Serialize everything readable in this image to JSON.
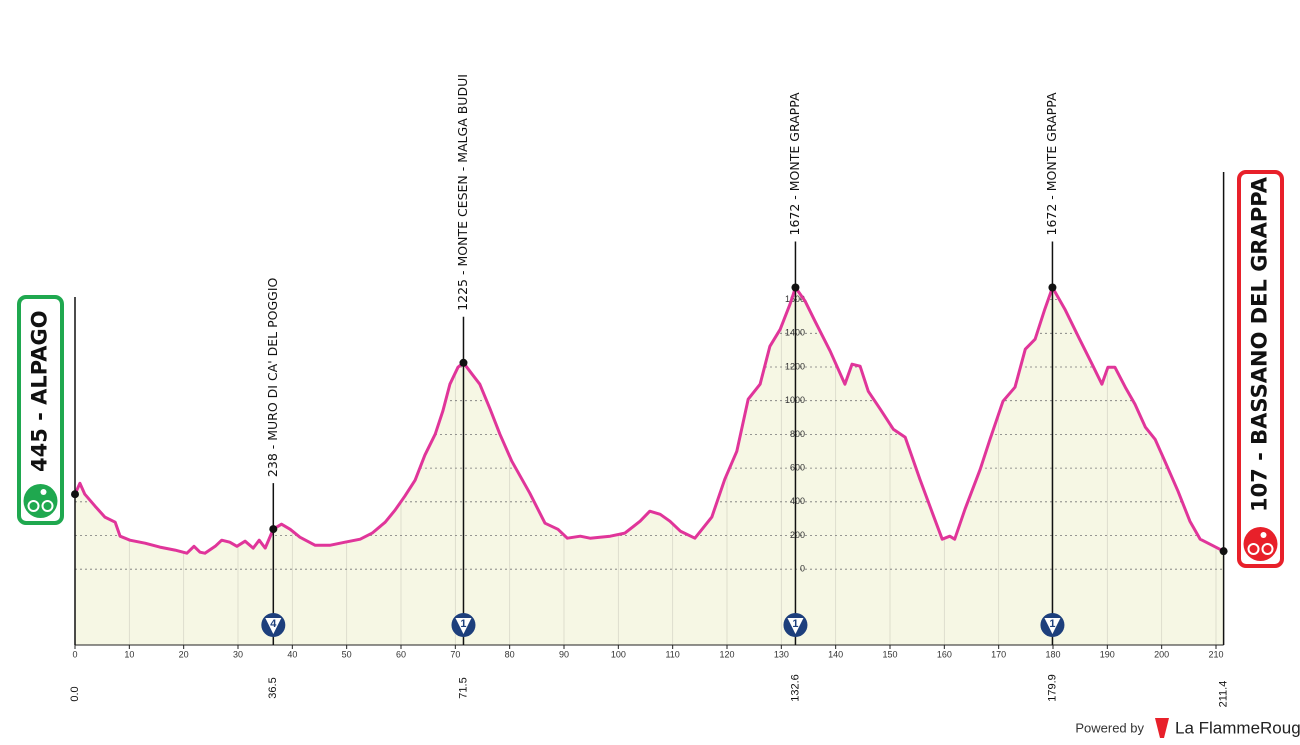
{
  "chart_data": {
    "type": "line",
    "x": [
      0,
      0.9,
      1.8,
      3.7,
      5.5,
      7.4,
      8.3,
      10.1,
      12.9,
      15.6,
      18.4,
      20.6,
      21.9,
      23,
      23.9,
      25.8,
      27,
      28.5,
      29.8,
      31.3,
      32.8,
      33.9,
      35,
      36.5,
      38,
      39.6,
      41.4,
      44.2,
      46.9,
      49.7,
      52.5,
      54.7,
      57.1,
      58.9,
      60.7,
      62.6,
      64.4,
      66.3,
      67.7,
      69,
      70.5,
      71.5,
      73.1,
      74.5,
      76.4,
      78.2,
      80.4,
      83.7,
      86.5,
      88.9,
      90.6,
      93,
      94.8,
      96.6,
      98.5,
      101.2,
      104,
      105.8,
      107.7,
      109.5,
      111.4,
      114.1,
      117.2,
      119.6,
      121.8,
      123.9,
      126.1,
      127.9,
      129.8,
      131.6,
      132.6,
      134.4,
      136.2,
      139,
      141.7,
      143,
      144.5,
      146,
      148.2,
      150.6,
      152.8,
      155.5,
      157.9,
      159.6,
      161,
      161.9,
      163.8,
      166.6,
      168.4,
      170.8,
      173,
      174.9,
      176.7,
      178.5,
      179.9,
      182.2,
      184.9,
      187.2,
      189,
      190.1,
      191.4,
      193.3,
      195.1,
      197,
      198.8,
      200.6,
      203,
      205.2,
      207.1,
      209.3,
      211.4
    ],
    "values": [
      445,
      510,
      445,
      374,
      309,
      279,
      196,
      172,
      154,
      131,
      113,
      95,
      136,
      101,
      95,
      136,
      172,
      160,
      136,
      166,
      125,
      172,
      125,
      238,
      267,
      237,
      190,
      142,
      142,
      160,
      178,
      214,
      279,
      350,
      433,
      528,
      677,
      801,
      938,
      1098,
      1199,
      1225,
      1157,
      1098,
      950,
      801,
      641,
      451,
      273,
      237,
      184,
      196,
      184,
      190,
      196,
      214,
      285,
      344,
      326,
      285,
      226,
      184,
      309,
      534,
      700,
      1009,
      1098,
      1323,
      1424,
      1573,
      1672,
      1590,
      1472,
      1294,
      1098,
      1217,
      1205,
      1056,
      950,
      831,
      783,
      534,
      326,
      178,
      196,
      178,
      356,
      593,
      771,
      997,
      1080,
      1306,
      1365,
      1543,
      1672,
      1543,
      1365,
      1217,
      1098,
      1199,
      1199,
      1080,
      979,
      843,
      771,
      641,
      463,
      285,
      178,
      142,
      107
    ],
    "color": "#e0359a",
    "fill": "#f6f7e4",
    "xlim": [
      0,
      211.4
    ],
    "ylim": [
      -450,
      2500
    ],
    "xticks": [
      0,
      10,
      20,
      30,
      40,
      50,
      60,
      70,
      80,
      90,
      100,
      110,
      120,
      130,
      140,
      150,
      160,
      170,
      180,
      190,
      200,
      210
    ],
    "yticks": [
      0,
      200,
      400,
      600,
      800,
      1000,
      1200,
      1400,
      1600
    ],
    "grid": true,
    "start": {
      "km": {
        "value": 0,
        "label": "0.0"
      },
      "elevation": 445,
      "label": "445 - ALPAGO",
      "color": "#1fa84f"
    },
    "finish": {
      "km": 211.4,
      "elevation": 107,
      "label": "107 - BASSANO DEL GRAPPA",
      "color": "#e8202a"
    },
    "climbs": [
      {
        "km": 36.5,
        "elevation": 238,
        "label": "238 - MURO DI CA' DEL POGGIO",
        "category": 4
      },
      {
        "km": 71.5,
        "elevation": 1225,
        "label": "1225 - MONTE CESEN - MALGA BUDUI",
        "category": 1
      },
      {
        "km": 132.6,
        "elevation": 1672,
        "label": "1672 - MONTE GRAPPA",
        "category": 1
      },
      {
        "km": 179.9,
        "elevation": 1672,
        "label": "1672 - MONTE GRAPPA",
        "category": 1
      }
    ]
  },
  "footer": {
    "powered": "Powered by",
    "brand": "La FlammeRouge"
  }
}
